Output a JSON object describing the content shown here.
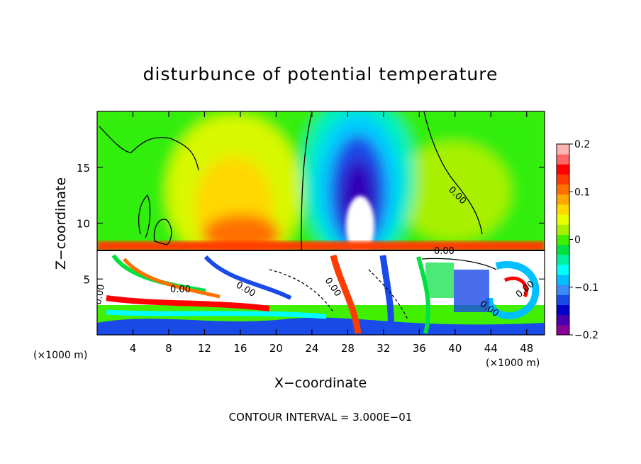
{
  "chart_data": {
    "type": "heatmap",
    "title": "disturbunce of potential temperature",
    "xlabel": "X−coordinate",
    "ylabel": "Z−coordinate",
    "x_unit_left": "(×1000 m)",
    "x_unit_right": "(×1000 m)",
    "xlim": [
      0,
      50
    ],
    "ylim": [
      0,
      20
    ],
    "x_ticks": [
      4,
      8,
      12,
      16,
      20,
      24,
      28,
      32,
      36,
      40,
      44,
      48
    ],
    "x_tick_labels": [
      "4",
      "8",
      "12",
      "16",
      "20",
      "24",
      "28",
      "32",
      "36",
      "40",
      "44",
      "48"
    ],
    "y_ticks": [
      5,
      10,
      15
    ],
    "y_tick_labels": [
      "5",
      "10",
      "15"
    ],
    "colorbar": {
      "range": [
        -0.2,
        0.2
      ],
      "ticks": [
        0.2,
        0.1,
        0,
        -0.1,
        -0.2
      ],
      "tick_labels": [
        "0.2",
        "0.1",
        "0",
        "−0.1",
        "−0.2"
      ],
      "colors": [
        "#8a0099",
        "#4a00b0",
        "#0000c8",
        "#1a4ae8",
        "#3a8cf8",
        "#00c0ff",
        "#00ffff",
        "#00f0a0",
        "#00e040",
        "#40f000",
        "#a8f000",
        "#e8ff00",
        "#ffd800",
        "#ffa800",
        "#ff7000",
        "#ff3c00",
        "#ff0000",
        "#ff6666",
        "#ffb4b4"
      ]
    },
    "contour_label": "0.00",
    "footer": "CONTOUR INTERVAL = 3.000E−01"
  }
}
